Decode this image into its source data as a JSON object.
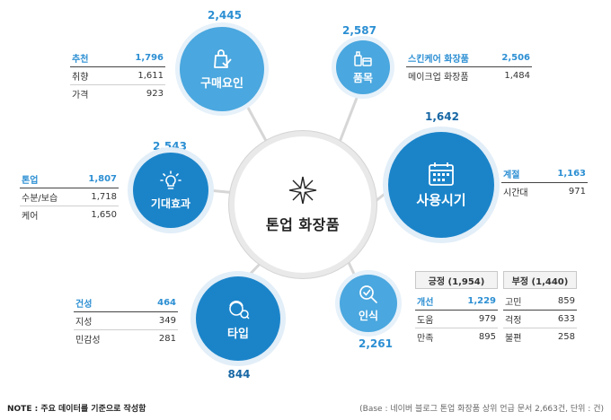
{
  "center": {
    "title": "톤업 화장품",
    "icon": "sparkle-icon"
  },
  "nodes": {
    "purchase": {
      "label": "구매요인",
      "value": "2,445",
      "icon": "shopping-bag-check-icon",
      "rows": [
        {
          "label": "추천",
          "value": "1,796",
          "highlight": true
        },
        {
          "label": "취향",
          "value": "1,611"
        },
        {
          "label": "가격",
          "value": "923"
        }
      ]
    },
    "items": {
      "label": "품목",
      "value": "2,587",
      "icon": "cosmetic-products-icon",
      "rows": [
        {
          "label": "스킨케어 화장품",
          "value": "2,506",
          "highlight": true
        },
        {
          "label": "메이크업 화장품",
          "value": "1,484"
        }
      ]
    },
    "timing": {
      "label": "사용시기",
      "value": "1,642",
      "icon": "calendar-icon",
      "rows": [
        {
          "label": "계절",
          "value": "1,163",
          "highlight": true
        },
        {
          "label": "시간대",
          "value": "971"
        }
      ]
    },
    "perception": {
      "label": "인식",
      "value": "2,261",
      "icon": "magnifier-check-icon",
      "positive": {
        "title": "긍정 (1,954)",
        "rows": [
          {
            "label": "개선",
            "value": "1,229",
            "highlight": true
          },
          {
            "label": "도움",
            "value": "979"
          },
          {
            "label": "만족",
            "value": "895"
          }
        ]
      },
      "negative": {
        "title": "부정 (1,440)",
        "rows": [
          {
            "label": "고민",
            "value": "859"
          },
          {
            "label": "걱정",
            "value": "633"
          },
          {
            "label": "불편",
            "value": "258"
          }
        ]
      }
    },
    "type": {
      "label": "타입",
      "value": "844",
      "icon": "face-person-icon",
      "rows": [
        {
          "label": "건성",
          "value": "464",
          "highlight": true
        },
        {
          "label": "지성",
          "value": "349"
        },
        {
          "label": "민감성",
          "value": "281"
        }
      ]
    },
    "effect": {
      "label": "기대효과",
      "value": "2,543",
      "icon": "lightbulb-icon",
      "rows": [
        {
          "label": "톤업",
          "value": "1,807",
          "highlight": true
        },
        {
          "label": "수분/보습",
          "value": "1,718"
        },
        {
          "label": "케어",
          "value": "1,650"
        }
      ]
    }
  },
  "footer": {
    "note": "NOTE : 주요 데이터를 기준으로 작성함",
    "base": "(Base : 네이버 블로그 톤업 화장품 상위 언급 문서 2,663건, 단위 : 건)"
  },
  "colors": {
    "light": "#4aa7df",
    "dark": "#1b84c9",
    "highlight": "#2c8fd3"
  }
}
